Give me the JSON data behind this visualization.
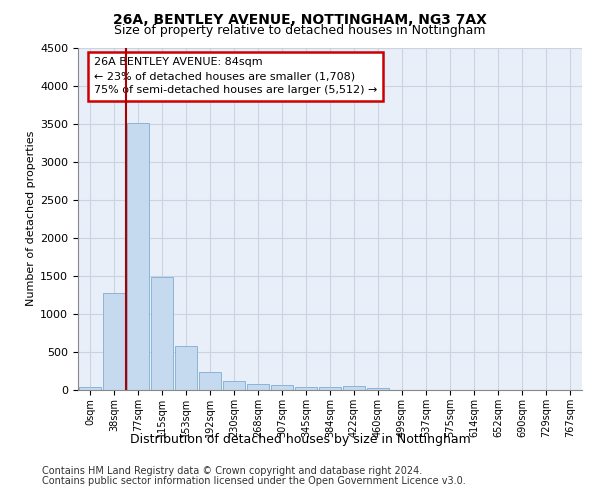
{
  "title1": "26A, BENTLEY AVENUE, NOTTINGHAM, NG3 7AX",
  "title2": "Size of property relative to detached houses in Nottingham",
  "xlabel": "Distribution of detached houses by size in Nottingham",
  "ylabel": "Number of detached properties",
  "bar_labels": [
    "0sqm",
    "38sqm",
    "77sqm",
    "115sqm",
    "153sqm",
    "192sqm",
    "230sqm",
    "268sqm",
    "307sqm",
    "345sqm",
    "384sqm",
    "422sqm",
    "460sqm",
    "499sqm",
    "537sqm",
    "575sqm",
    "614sqm",
    "652sqm",
    "690sqm",
    "729sqm",
    "767sqm"
  ],
  "bar_values": [
    40,
    1280,
    3510,
    1480,
    575,
    240,
    115,
    80,
    60,
    45,
    35,
    55,
    30,
    0,
    0,
    0,
    0,
    0,
    0,
    0,
    0
  ],
  "bar_color": "#c5d9ef",
  "bar_edge_color": "#8ab4d8",
  "ylim_max": 4500,
  "yticks": [
    0,
    500,
    1000,
    1500,
    2000,
    2500,
    3000,
    3500,
    4000,
    4500
  ],
  "red_line_x": 1.5,
  "property_line_color": "#aa0000",
  "annotation_title": "26A BENTLEY AVENUE: 84sqm",
  "annotation_line1": "← 23% of detached houses are smaller (1,708)",
  "annotation_line2": "75% of semi-detached houses are larger (5,512) →",
  "annotation_box_edgecolor": "#cc0000",
  "footnote1": "Contains HM Land Registry data © Crown copyright and database right 2024.",
  "footnote2": "Contains public sector information licensed under the Open Government Licence v3.0.",
  "plot_bg_color": "#e8eff8",
  "grid_color": "#c8d4e4",
  "title1_fontsize": 10,
  "title2_fontsize": 9,
  "ylabel_fontsize": 8,
  "xlabel_fontsize": 9,
  "tick_fontsize": 8,
  "xtick_fontsize": 7,
  "footnote_fontsize": 7,
  "annot_fontsize": 8
}
